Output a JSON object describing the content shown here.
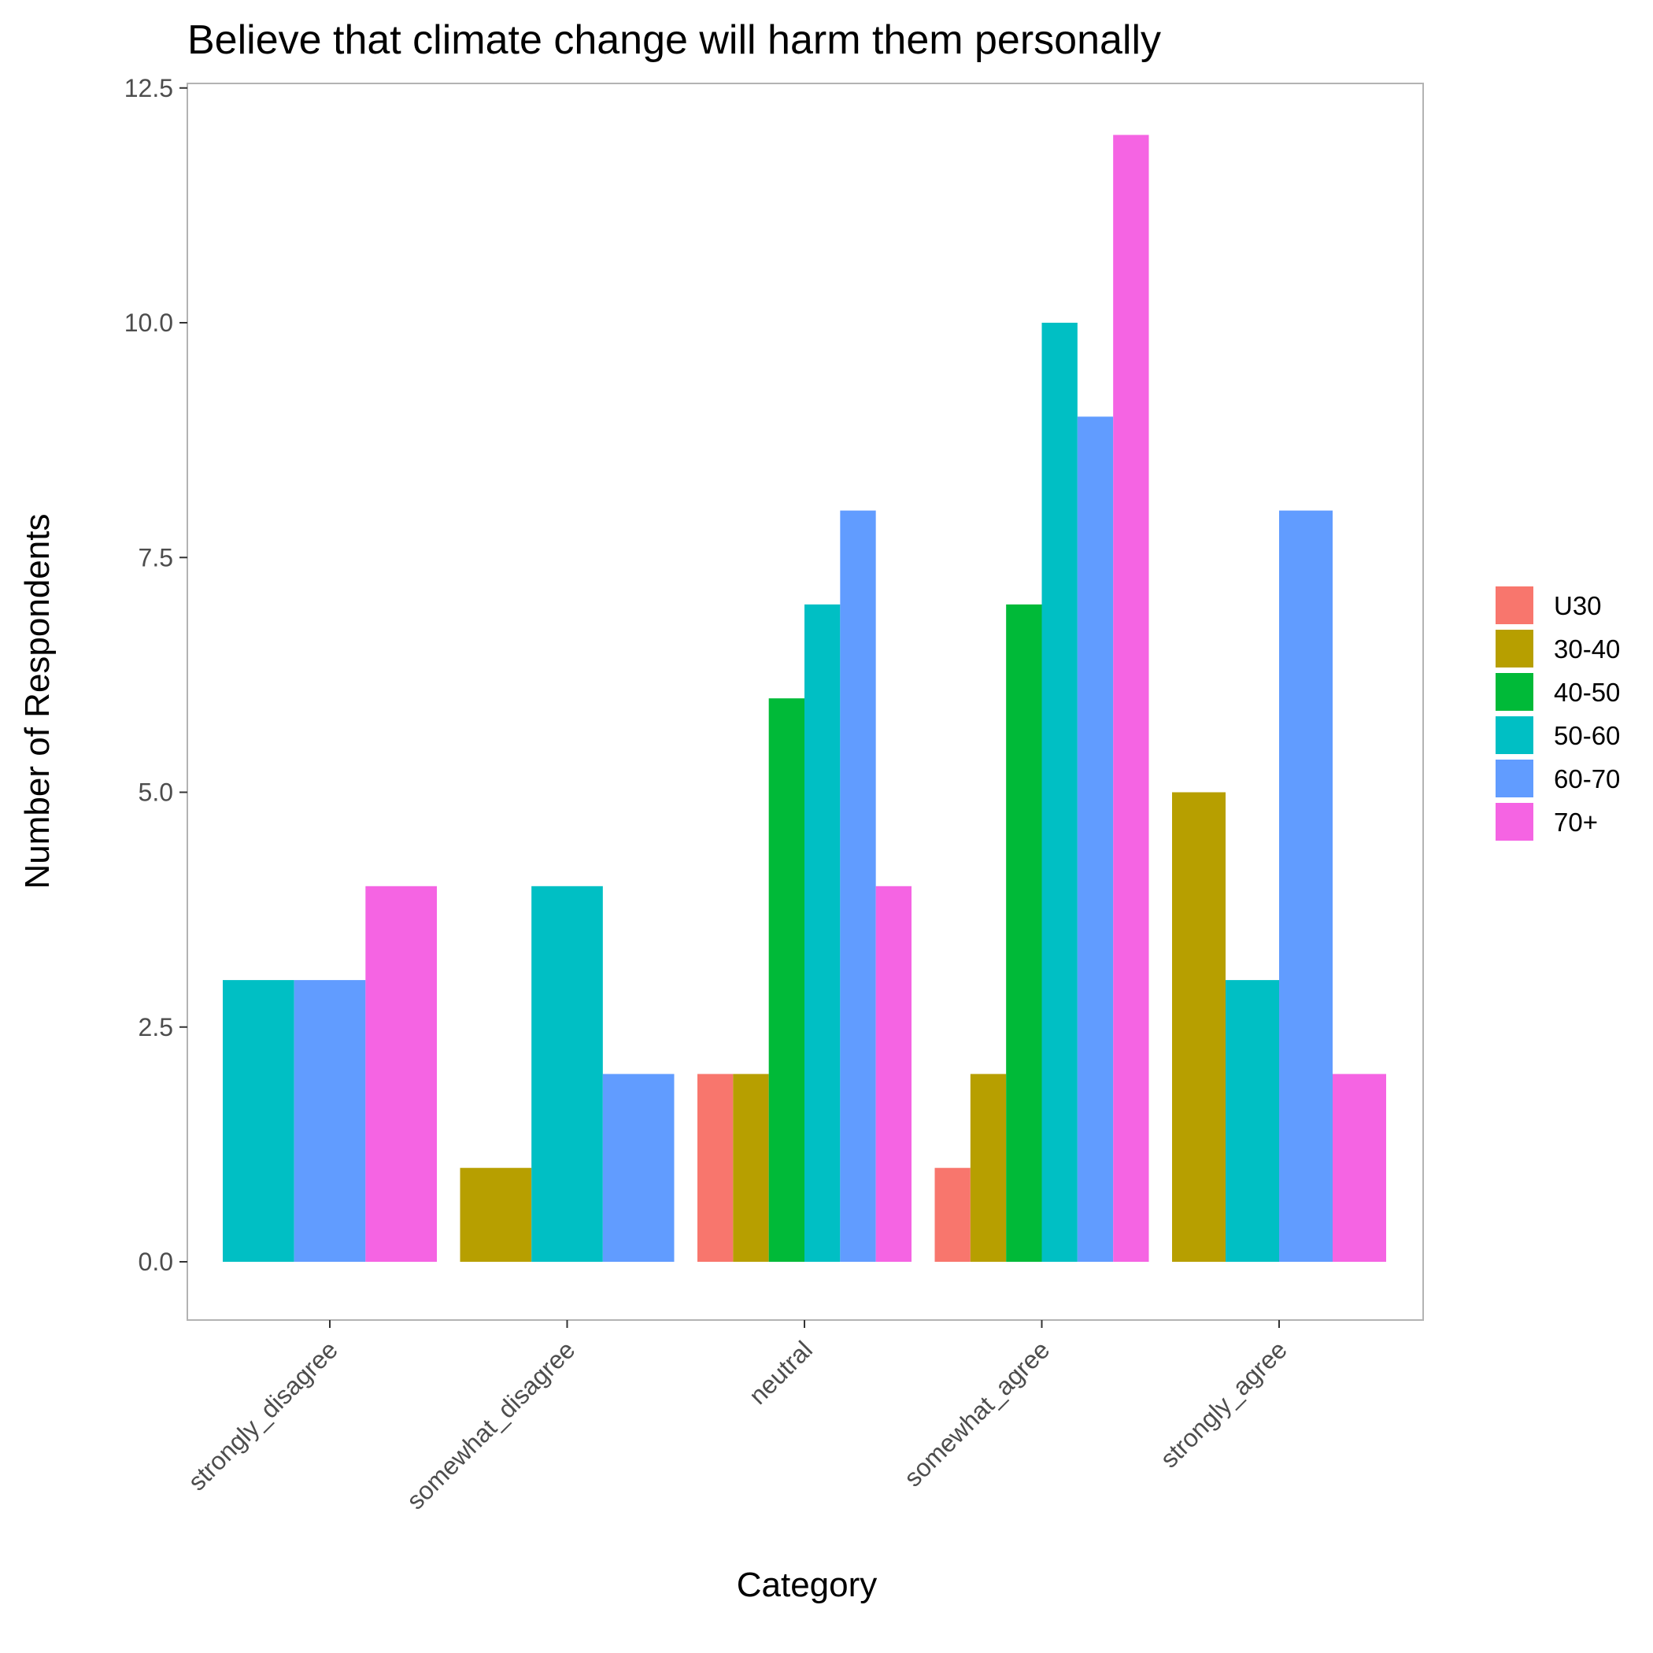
{
  "chart_data": {
    "type": "bar",
    "title": "Believe that climate change will harm them personally",
    "xlabel": "Category",
    "ylabel": "Number of Respondents",
    "categories": [
      "strongly_disagree",
      "somewhat_disagree",
      "neutral",
      "somewhat_agree",
      "strongly_agree"
    ],
    "series": [
      {
        "name": "U30",
        "color": "#F8766D",
        "values": [
          0,
          0,
          2,
          1,
          0
        ]
      },
      {
        "name": "30-40",
        "color": "#B79F00",
        "values": [
          0,
          1,
          2,
          2,
          5
        ]
      },
      {
        "name": "40-50",
        "color": "#00BA38",
        "values": [
          0,
          0,
          6,
          7,
          0
        ]
      },
      {
        "name": "50-60",
        "color": "#00BFC4",
        "values": [
          3,
          4,
          7,
          10,
          3
        ]
      },
      {
        "name": "60-70",
        "color": "#619CFF",
        "values": [
          3,
          2,
          8,
          9,
          8
        ]
      },
      {
        "name": "70+",
        "color": "#F564E3",
        "values": [
          4,
          0,
          4,
          12,
          2
        ]
      }
    ],
    "yticks": [
      "0.0",
      "2.5",
      "5.0",
      "7.5",
      "10.0",
      "12.5"
    ],
    "ylim": [
      -0.6,
      12.6
    ],
    "legend_position": "right",
    "grid": false
  }
}
